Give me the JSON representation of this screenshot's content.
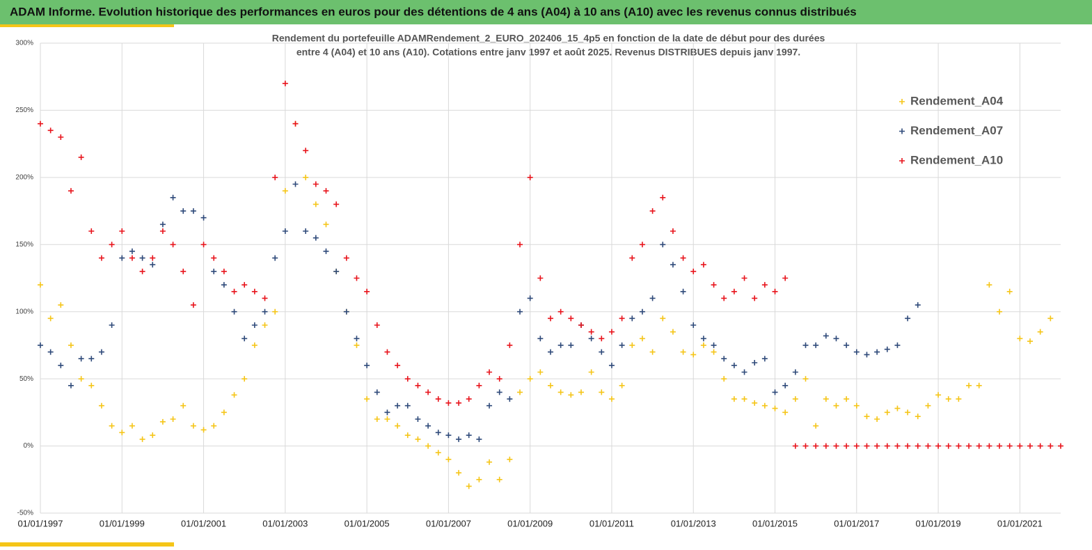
{
  "header": {
    "title": "ADAM Informe. Evolution historique des performances en euros pour des détentions de 4 ans (A04) à 10 ans (A10) avec les revenus connus distribués"
  },
  "chart_data": {
    "type": "scatter",
    "title": "Rendement du portefeuille ADAMRendement_2_EURO_202406_15_4p5  en fonction de la date de début pour des durées",
    "subtitle": "entre 4 (A04) et 10 ans (A10). Cotations  entre janv 1997 et août 2025. Revenus DISTRIBUES depuis janv 1997.",
    "x": [
      1997,
      1997.25,
      1997.5,
      1997.75,
      1998,
      1998.25,
      1998.5,
      1998.75,
      1999,
      1999.25,
      1999.5,
      1999.75,
      2000,
      2000.25,
      2000.5,
      2000.75,
      2001,
      2001.25,
      2001.5,
      2001.75,
      2002,
      2002.25,
      2002.5,
      2002.75,
      2003,
      2003.25,
      2003.5,
      2003.75,
      2004,
      2004.25,
      2004.5,
      2004.75,
      2005,
      2005.25,
      2005.5,
      2005.75,
      2006,
      2006.25,
      2006.5,
      2006.75,
      2007,
      2007.25,
      2007.5,
      2007.75,
      2008,
      2008.25,
      2008.5,
      2008.75,
      2009,
      2009.25,
      2009.5,
      2009.75,
      2010,
      2010.25,
      2010.5,
      2010.75,
      2011,
      2011.25,
      2011.5,
      2011.75,
      2012,
      2012.25,
      2012.5,
      2012.75,
      2013,
      2013.25,
      2013.5,
      2013.75,
      2014,
      2014.25,
      2014.5,
      2014.75,
      2015,
      2015.25,
      2015.5,
      2015.75,
      2016,
      2016.25,
      2016.5,
      2016.75,
      2017,
      2017.25,
      2017.5,
      2017.75,
      2018,
      2018.25,
      2018.5,
      2018.75,
      2019,
      2019.25,
      2019.5,
      2019.75,
      2020,
      2020.25,
      2020.5,
      2020.75,
      2021,
      2021.25,
      2021.5,
      2021.75,
      2022
    ],
    "series": [
      {
        "name": "Rendement_A04",
        "color": "#f5c518",
        "values": [
          120,
          95,
          105,
          75,
          50,
          45,
          30,
          15,
          10,
          15,
          5,
          8,
          18,
          20,
          30,
          15,
          12,
          15,
          25,
          38,
          50,
          75,
          90,
          100,
          190,
          240,
          200,
          180,
          165,
          130,
          100,
          75,
          35,
          20,
          20,
          15,
          8,
          5,
          0,
          -5,
          -10,
          -20,
          -30,
          -25,
          -12,
          -25,
          -10,
          40,
          50,
          55,
          45,
          40,
          38,
          40,
          55,
          40,
          35,
          45,
          75,
          80,
          70,
          95,
          85,
          70,
          68,
          75,
          70,
          50,
          35,
          35,
          32,
          30,
          28,
          25,
          35,
          50,
          15,
          35,
          30,
          35,
          30,
          22,
          20,
          25,
          28,
          25,
          22,
          30,
          38,
          35,
          35,
          45,
          45,
          120,
          100,
          115,
          80,
          78,
          85,
          95,
          null
        ]
      },
      {
        "name": "Rendement_A07",
        "color": "#2f4a7a",
        "values": [
          75,
          70,
          60,
          45,
          65,
          65,
          70,
          90,
          140,
          145,
          140,
          135,
          165,
          185,
          175,
          175,
          170,
          130,
          120,
          100,
          80,
          90,
          100,
          140,
          160,
          195,
          160,
          155,
          145,
          130,
          100,
          80,
          60,
          40,
          25,
          30,
          30,
          20,
          15,
          10,
          8,
          5,
          8,
          5,
          30,
          40,
          35,
          100,
          110,
          80,
          70,
          75,
          75,
          90,
          80,
          70,
          60,
          75,
          95,
          100,
          110,
          150,
          135,
          115,
          90,
          80,
          75,
          65,
          60,
          55,
          62,
          65,
          40,
          45,
          55,
          75,
          75,
          82,
          80,
          75,
          70,
          68,
          70,
          72,
          75,
          95,
          105,
          null,
          null,
          null,
          null,
          null,
          null,
          null,
          null,
          null,
          null,
          null,
          null,
          null,
          null
        ]
      },
      {
        "name": "Rendement_A10",
        "color": "#e8141c",
        "values": [
          240,
          235,
          230,
          190,
          215,
          160,
          140,
          150,
          160,
          140,
          130,
          140,
          160,
          150,
          130,
          105,
          150,
          140,
          130,
          115,
          120,
          115,
          110,
          200,
          270,
          240,
          220,
          195,
          190,
          180,
          140,
          125,
          115,
          90,
          70,
          60,
          50,
          45,
          40,
          35,
          32,
          32,
          35,
          45,
          55,
          50,
          75,
          150,
          200,
          125,
          95,
          100,
          95,
          90,
          85,
          80,
          85,
          95,
          140,
          150,
          175,
          185,
          160,
          140,
          130,
          135,
          120,
          110,
          115,
          125,
          110,
          120,
          115,
          125,
          0,
          0,
          0,
          0,
          0,
          0,
          0,
          0,
          0,
          0,
          0,
          0,
          0,
          0,
          0,
          0,
          0,
          0,
          0,
          0,
          0,
          0,
          0,
          0,
          0,
          0,
          0
        ]
      }
    ],
    "xlim": [
      1997,
      2022
    ],
    "xticks": [
      {
        "value": 1997,
        "label": "01/01/1997"
      },
      {
        "value": 1999,
        "label": "01/01/1999"
      },
      {
        "value": 2001,
        "label": "01/01/2001"
      },
      {
        "value": 2003,
        "label": "01/01/2003"
      },
      {
        "value": 2005,
        "label": "01/01/2005"
      },
      {
        "value": 2007,
        "label": "01/01/2007"
      },
      {
        "value": 2009,
        "label": "01/01/2009"
      },
      {
        "value": 2011,
        "label": "01/01/2011"
      },
      {
        "value": 2013,
        "label": "01/01/2013"
      },
      {
        "value": 2015,
        "label": "01/01/2015"
      },
      {
        "value": 2017,
        "label": "01/01/2017"
      },
      {
        "value": 2019,
        "label": "01/01/2019"
      },
      {
        "value": 2021,
        "label": "01/01/2021"
      }
    ],
    "ylim": [
      -50,
      300
    ],
    "yticks": [
      {
        "value": -50,
        "label": "-50%"
      },
      {
        "value": 0,
        "label": "0%"
      },
      {
        "value": 50,
        "label": "50%"
      },
      {
        "value": 100,
        "label": "100%"
      },
      {
        "value": 150,
        "label": "150%"
      },
      {
        "value": 200,
        "label": "200%"
      },
      {
        "value": 250,
        "label": "250%"
      },
      {
        "value": 300,
        "label": "300%"
      }
    ],
    "grid": true,
    "legend": "top-right"
  }
}
